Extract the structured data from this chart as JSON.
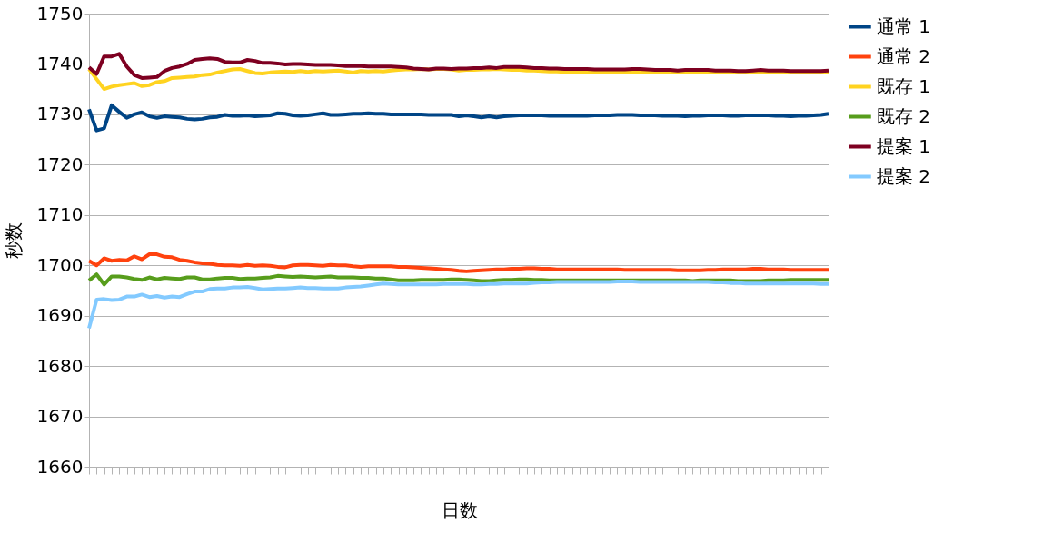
{
  "chart_data": {
    "type": "line",
    "xlabel": "日数",
    "ylabel": "秒数",
    "categories": [
      null,
      null,
      null,
      null,
      null,
      null,
      null,
      null,
      null,
      null,
      null,
      null,
      null,
      null,
      null,
      null,
      null,
      null,
      null,
      null,
      null,
      null,
      null,
      null,
      null,
      null,
      null,
      null,
      null,
      null,
      null,
      null,
      null,
      null,
      null,
      null,
      null,
      null,
      null,
      null,
      null,
      null,
      null,
      null,
      null,
      null,
      null,
      null,
      null,
      null,
      null,
      null,
      null,
      null,
      null,
      null,
      null,
      null,
      null,
      null,
      null,
      null,
      null,
      null,
      null,
      null,
      null,
      null,
      null,
      null,
      null,
      null,
      null,
      null,
      null,
      null,
      null,
      null,
      null,
      null,
      null,
      null,
      null,
      null,
      null,
      null,
      null,
      null,
      null,
      null,
      null,
      null,
      null,
      null,
      null,
      null,
      null,
      null,
      null
    ],
    "ylim": [
      1660,
      1750
    ],
    "yticks": [
      1660,
      1670,
      1680,
      1690,
      1700,
      1710,
      1720,
      1730,
      1740,
      1750
    ],
    "grid": "y",
    "legend": "right",
    "tick_labels": "y",
    "marker": "none",
    "line_style": "solid",
    "series": [
      {
        "name": "通常 1",
        "color": "#004586",
        "values": [
          1731,
          1726.8,
          1727.2,
          1731.8,
          1730.5,
          1729.3,
          1730,
          1730.4,
          1729.6,
          1729.3,
          1729.6,
          1729.5,
          1729.4,
          1729.1,
          1729,
          1729.1,
          1729.4,
          1729.5,
          1729.9,
          1729.7,
          1729.7,
          1729.8,
          1729.6,
          1729.7,
          1729.8,
          1730.2,
          1730.1,
          1729.8,
          1729.7,
          1729.8,
          1730,
          1730.2,
          1729.9,
          1729.9,
          1730,
          1730.1,
          1730.1,
          1730.2,
          1730.1,
          1730.1,
          1730,
          1730,
          1730,
          1730,
          1730,
          1729.9,
          1729.9,
          1729.9,
          1729.9,
          1729.6,
          1729.8,
          1729.6,
          1729.4,
          1729.6,
          1729.4,
          1729.6,
          1729.7,
          1729.8,
          1729.8,
          1729.8,
          1729.8,
          1729.7,
          1729.7,
          1729.7,
          1729.7,
          1729.7,
          1729.7,
          1729.8,
          1729.8,
          1729.8,
          1729.9,
          1729.9,
          1729.9,
          1729.8,
          1729.8,
          1729.8,
          1729.7,
          1729.7,
          1729.7,
          1729.6,
          1729.7,
          1729.7,
          1729.8,
          1729.8,
          1729.8,
          1729.7,
          1729.7,
          1729.8,
          1729.8,
          1729.8,
          1729.8,
          1729.7,
          1729.7,
          1729.6,
          1729.7,
          1729.7,
          1729.8,
          1729.9,
          1730.1
        ]
      },
      {
        "name": "通常 2",
        "color": "#ff420e",
        "values": [
          1700.9,
          1700,
          1701.4,
          1700.9,
          1701.1,
          1701,
          1701.8,
          1701.2,
          1702.2,
          1702.2,
          1701.7,
          1701.6,
          1701.1,
          1700.9,
          1700.6,
          1700.4,
          1700.3,
          1700.1,
          1700,
          1700,
          1699.9,
          1700.1,
          1699.9,
          1700,
          1699.9,
          1699.7,
          1699.6,
          1700,
          1700.1,
          1700.1,
          1700,
          1699.9,
          1700.1,
          1700,
          1700,
          1699.8,
          1699.7,
          1699.8,
          1699.8,
          1699.8,
          1699.8,
          1699.7,
          1699.7,
          1699.6,
          1699.5,
          1699.4,
          1699.3,
          1699.2,
          1699.1,
          1698.9,
          1698.8,
          1698.9,
          1699,
          1699.1,
          1699.2,
          1699.2,
          1699.3,
          1699.3,
          1699.4,
          1699.4,
          1699.3,
          1699.3,
          1699.2,
          1699.2,
          1699.2,
          1699.2,
          1699.2,
          1699.2,
          1699.2,
          1699.2,
          1699.2,
          1699.1,
          1699.1,
          1699.1,
          1699.1,
          1699.1,
          1699.1,
          1699.1,
          1699,
          1699,
          1699,
          1699,
          1699.1,
          1699.1,
          1699.2,
          1699.2,
          1699.2,
          1699.2,
          1699.3,
          1699.3,
          1699.2,
          1699.2,
          1699.2,
          1699.1,
          1699.1,
          1699.1,
          1699.1,
          1699.1,
          1699.1
        ]
      },
      {
        "name": "既存 1",
        "color": "#ffd320",
        "values": [
          1739,
          1737,
          1735,
          1735.5,
          1735.8,
          1736,
          1736.2,
          1735.6,
          1735.8,
          1736.4,
          1736.6,
          1737.2,
          1737.3,
          1737.4,
          1737.5,
          1737.8,
          1737.9,
          1738.3,
          1738.6,
          1738.9,
          1739,
          1738.6,
          1738.2,
          1738.1,
          1738.3,
          1738.4,
          1738.5,
          1738.4,
          1738.6,
          1738.4,
          1738.6,
          1738.5,
          1738.6,
          1738.7,
          1738.5,
          1738.3,
          1738.6,
          1738.5,
          1738.6,
          1738.5,
          1738.7,
          1738.8,
          1738.9,
          1738.9,
          1739,
          1738.9,
          1739,
          1739,
          1738.9,
          1738.7,
          1738.8,
          1738.8,
          1738.9,
          1738.9,
          1739,
          1738.9,
          1738.8,
          1738.8,
          1738.7,
          1738.7,
          1738.6,
          1738.5,
          1738.5,
          1738.4,
          1738.4,
          1738.3,
          1738.3,
          1738.4,
          1738.4,
          1738.4,
          1738.3,
          1738.3,
          1738.3,
          1738.3,
          1738.3,
          1738.4,
          1738.4,
          1738.3,
          1738.3,
          1738.3,
          1738.3,
          1738.3,
          1738.3,
          1738.4,
          1738.4,
          1738.4,
          1738.4,
          1738.3,
          1738.4,
          1738.4,
          1738.4,
          1738.4,
          1738.4,
          1738.4,
          1738.3,
          1738.3,
          1738.3,
          1738.3,
          1738.3
        ]
      },
      {
        "name": "既存 2",
        "color": "#579d1c",
        "values": [
          1697,
          1698.2,
          1696.2,
          1697.8,
          1697.8,
          1697.6,
          1697.3,
          1697.1,
          1697.6,
          1697.2,
          1697.5,
          1697.4,
          1697.3,
          1697.6,
          1697.6,
          1697.2,
          1697.2,
          1697.4,
          1697.5,
          1697.5,
          1697.3,
          1697.4,
          1697.4,
          1697.5,
          1697.6,
          1697.9,
          1697.8,
          1697.7,
          1697.8,
          1697.7,
          1697.6,
          1697.7,
          1697.8,
          1697.6,
          1697.6,
          1697.6,
          1697.5,
          1697.5,
          1697.4,
          1697.4,
          1697.2,
          1697,
          1697,
          1697,
          1697.1,
          1697.1,
          1697.1,
          1697.1,
          1697.2,
          1697.2,
          1697.1,
          1697,
          1696.9,
          1696.9,
          1697,
          1697.1,
          1697.1,
          1697.2,
          1697.2,
          1697.1,
          1697.1,
          1697,
          1697,
          1697,
          1697,
          1697,
          1697,
          1697,
          1697,
          1697,
          1697,
          1697,
          1697,
          1697,
          1697,
          1697,
          1697,
          1697,
          1697,
          1697,
          1696.9,
          1697,
          1697,
          1697,
          1697,
          1697,
          1696.9,
          1696.9,
          1696.9,
          1696.9,
          1697,
          1697,
          1697,
          1697.1,
          1697.1,
          1697.1,
          1697.1,
          1697.1,
          1697.1
        ]
      },
      {
        "name": "提案 1",
        "color": "#7e0021",
        "values": [
          1739.3,
          1738,
          1741.5,
          1741.5,
          1742,
          1739.5,
          1737.8,
          1737.2,
          1737.3,
          1737.4,
          1738.6,
          1739.2,
          1739.5,
          1740,
          1740.8,
          1741,
          1741.1,
          1741,
          1740.4,
          1740.3,
          1740.3,
          1740.8,
          1740.6,
          1740.2,
          1740.2,
          1740.1,
          1739.9,
          1740,
          1740,
          1739.9,
          1739.8,
          1739.8,
          1739.8,
          1739.7,
          1739.6,
          1739.6,
          1739.6,
          1739.5,
          1739.5,
          1739.5,
          1739.5,
          1739.4,
          1739.3,
          1739.1,
          1739,
          1738.9,
          1739.1,
          1739.1,
          1739,
          1739.1,
          1739.1,
          1739.2,
          1739.2,
          1739.3,
          1739.2,
          1739.4,
          1739.4,
          1739.4,
          1739.3,
          1739.2,
          1739.2,
          1739.1,
          1739.1,
          1739,
          1739,
          1739,
          1739,
          1738.9,
          1738.9,
          1738.9,
          1738.9,
          1738.9,
          1739,
          1739,
          1738.9,
          1738.8,
          1738.8,
          1738.8,
          1738.7,
          1738.8,
          1738.8,
          1738.8,
          1738.8,
          1738.7,
          1738.7,
          1738.7,
          1738.6,
          1738.6,
          1738.7,
          1738.8,
          1738.7,
          1738.7,
          1738.7,
          1738.6,
          1738.6,
          1738.6,
          1738.6,
          1738.6,
          1738.7
        ]
      },
      {
        "name": "提案 2",
        "color": "#83caff",
        "values": [
          1687.5,
          1693.2,
          1693.3,
          1693.1,
          1693.2,
          1693.8,
          1693.8,
          1694.2,
          1693.7,
          1693.9,
          1693.6,
          1693.8,
          1693.7,
          1694.3,
          1694.8,
          1694.8,
          1695.3,
          1695.4,
          1695.4,
          1695.6,
          1695.6,
          1695.7,
          1695.5,
          1695.2,
          1695.3,
          1695.4,
          1695.4,
          1695.5,
          1695.6,
          1695.5,
          1695.5,
          1695.4,
          1695.4,
          1695.4,
          1695.6,
          1695.7,
          1695.8,
          1696,
          1696.2,
          1696.4,
          1696.3,
          1696.2,
          1696.2,
          1696.2,
          1696.2,
          1696.2,
          1696.2,
          1696.3,
          1696.3,
          1696.3,
          1696.3,
          1696.2,
          1696.2,
          1696.3,
          1696.3,
          1696.4,
          1696.4,
          1696.4,
          1696.4,
          1696.5,
          1696.6,
          1696.6,
          1696.7,
          1696.7,
          1696.7,
          1696.7,
          1696.7,
          1696.7,
          1696.7,
          1696.7,
          1696.8,
          1696.8,
          1696.8,
          1696.7,
          1696.7,
          1696.7,
          1696.7,
          1696.7,
          1696.7,
          1696.7,
          1696.7,
          1696.7,
          1696.7,
          1696.6,
          1696.6,
          1696.5,
          1696.5,
          1696.4,
          1696.4,
          1696.4,
          1696.4,
          1696.4,
          1696.4,
          1696.4,
          1696.4,
          1696.4,
          1696.4,
          1696.3,
          1696.3
        ]
      }
    ]
  }
}
